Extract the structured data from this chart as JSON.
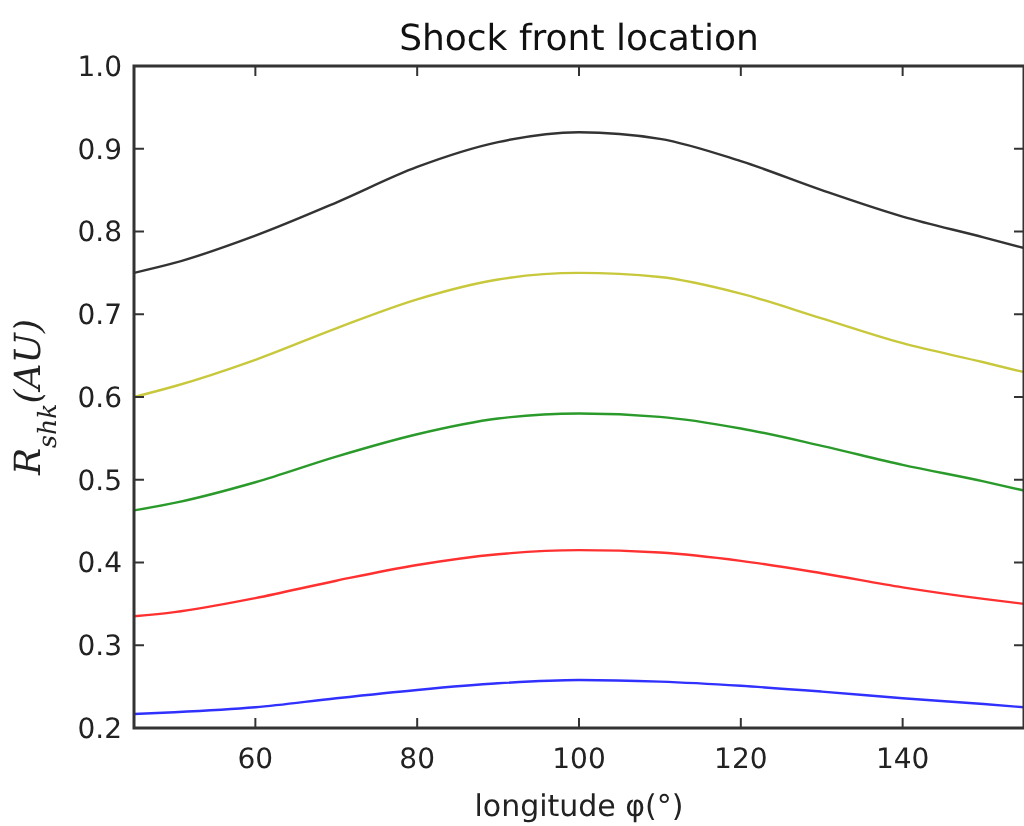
{
  "chart_data": {
    "type": "line",
    "title": "Shock front location",
    "xlabel": "longitude φ(°)",
    "ylabel": "R$_{shk}$(AU)",
    "x": [
      45,
      50,
      60,
      70,
      80,
      90,
      100,
      110,
      120,
      130,
      140,
      150,
      155
    ],
    "xlim": [
      45,
      155
    ],
    "xticks": [
      60,
      80,
      100,
      120,
      140
    ],
    "ylim": [
      0.2,
      1.0
    ],
    "yticks": [
      0.2,
      0.3,
      0.4,
      0.5,
      0.6,
      0.7,
      0.8,
      0.9,
      {
        "value": 1,
        "label": "1.0"
      }
    ],
    "grid": false,
    "line_style": "solid",
    "marker": "none",
    "series": [
      {
        "color": "#333333",
        "values": [
          0.75,
          0.762,
          0.795,
          0.835,
          0.878,
          0.908,
          0.92,
          0.912,
          0.885,
          0.85,
          0.818,
          0.793,
          0.78
        ]
      },
      {
        "color": "#c8c83c",
        "values": [
          0.6,
          0.613,
          0.645,
          0.683,
          0.718,
          0.742,
          0.75,
          0.745,
          0.725,
          0.695,
          0.665,
          0.642,
          0.63
        ]
      },
      {
        "color": "#2a9a2a",
        "values": [
          0.463,
          0.472,
          0.497,
          0.528,
          0.555,
          0.574,
          0.58,
          0.576,
          0.562,
          0.541,
          0.518,
          0.498,
          0.487
        ]
      },
      {
        "color": "#ff3030",
        "values": [
          0.335,
          0.34,
          0.357,
          0.378,
          0.397,
          0.41,
          0.415,
          0.412,
          0.402,
          0.387,
          0.37,
          0.356,
          0.35
        ]
      },
      {
        "color": "#3030ff",
        "values": [
          0.217,
          0.219,
          0.225,
          0.236,
          0.246,
          0.254,
          0.258,
          0.256,
          0.251,
          0.244,
          0.236,
          0.229,
          0.225
        ]
      }
    ]
  }
}
